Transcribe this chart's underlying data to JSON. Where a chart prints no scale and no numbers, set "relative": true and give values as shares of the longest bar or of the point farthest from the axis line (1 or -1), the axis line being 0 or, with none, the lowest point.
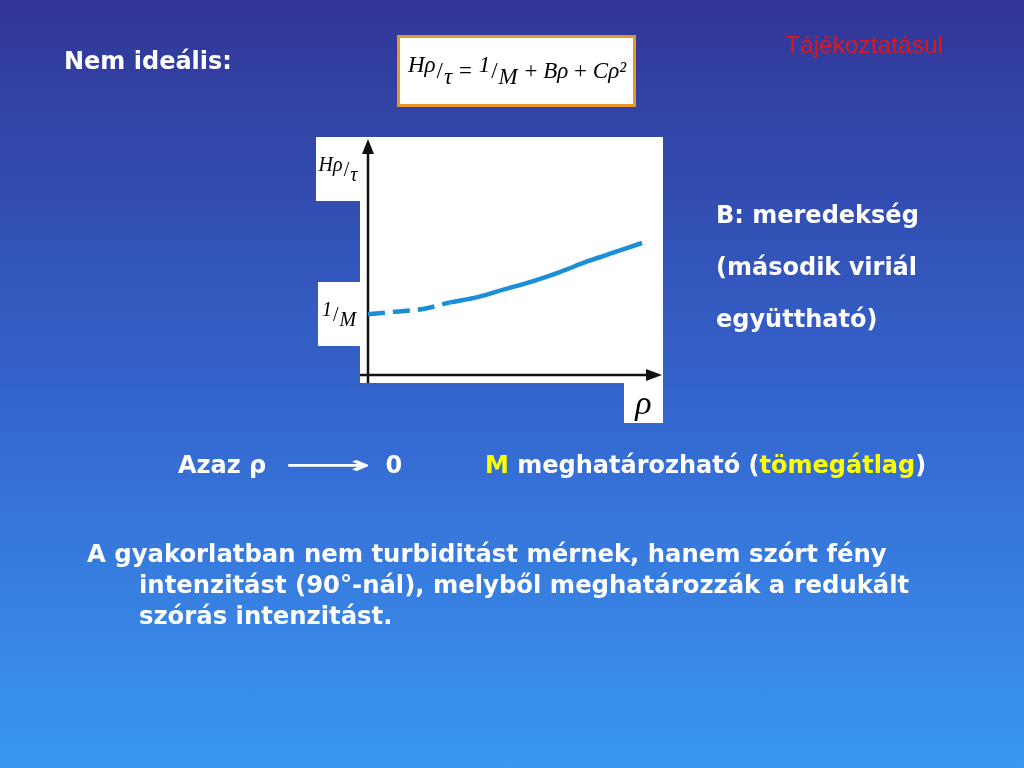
{
  "chart_data": {
    "type": "line",
    "title": "Nem ideális:",
    "xlabel": "ρ",
    "ylabel": "Hρ/τ",
    "relative": true,
    "categories": [
      null,
      null,
      null,
      null,
      null,
      null,
      null,
      null,
      null,
      null,
      null
    ],
    "series": [
      {
        "color": "#1b8fd6",
        "line_style": "dashed",
        "values": [
          0.46,
          0.48,
          0.5,
          0.55,
          null,
          null,
          null,
          null,
          null,
          null,
          null
        ]
      },
      {
        "color": "#1b8fd6",
        "line_style": "solid",
        "values": [
          null,
          null,
          null,
          0.55,
          0.59,
          0.65,
          0.71,
          0.78,
          0.86,
          0.93,
          1
        ]
      }
    ],
    "annotations": [
      "Hρ/τ = 1/M + Bρ + Cρ²",
      "Tájékoztatásul",
      "B: meredekség (második viriál együttható)",
      "Azaz ρ ⟶ 0",
      "M meghatározható (tömegátlag)",
      "A gyakorlatban nem turbiditást mérnek, hanem szórt fény intenzitást (90°-nál), melyből meghatározzák a redukált szórás intenzitást.",
      "1/M"
    ]
  }
}
